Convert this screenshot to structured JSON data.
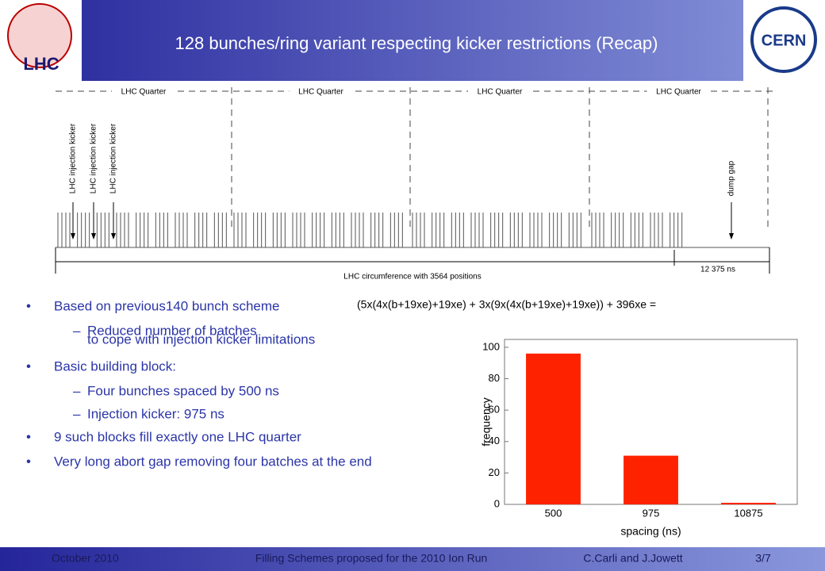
{
  "header": {
    "title": "128 bunches/ring variant respecting kicker restrictions (Recap)",
    "logo_left": "LHC",
    "logo_right": "CERN"
  },
  "diagram": {
    "quarters": [
      "LHC Quarter",
      "LHC Quarter",
      "LHC Quarter",
      "LHC Quarter"
    ],
    "kickers": [
      "LHC injection kicker",
      "LHC injection kicker",
      "LHC injection kicker"
    ],
    "dump_gap": "dump gap",
    "gap_length": "12 375 ns",
    "circumference": "LHC circumference with 3564 positions"
  },
  "formula": "(5x(4x(b+19xe)+19xe) + 3x(9x(4x(b+19xe)+19xe)) + 396xe =",
  "bullets": [
    {
      "text": "Based on previous140 bunch scheme",
      "sub": [
        "Reduced number of batches",
        "to cope with injection kicker limitations"
      ]
    },
    {
      "text": "Basic building block:",
      "sub": [
        "Four bunches spaced by 500 ns",
        "Injection kicker: 975 ns"
      ]
    },
    {
      "text": "9 such blocks fill exactly one LHC quarter",
      "sub": []
    },
    {
      "text": "Very long abort gap removing four batches at the end",
      "sub": []
    }
  ],
  "chart_data": {
    "type": "bar",
    "categories": [
      "500",
      "975",
      "10875"
    ],
    "values": [
      96,
      31,
      1
    ],
    "color": "#ff2200",
    "ylim": [
      0,
      105
    ],
    "yticks": [
      0,
      20,
      40,
      60,
      80,
      100
    ],
    "xlabel": "spacing (ns)",
    "ylabel": "frequency"
  },
  "footer": {
    "date": "October 2010",
    "title": "Filling Schemes proposed for the 2010 Ion Run",
    "authors": "C.Carli and J.Jowett",
    "page": "3/7"
  }
}
